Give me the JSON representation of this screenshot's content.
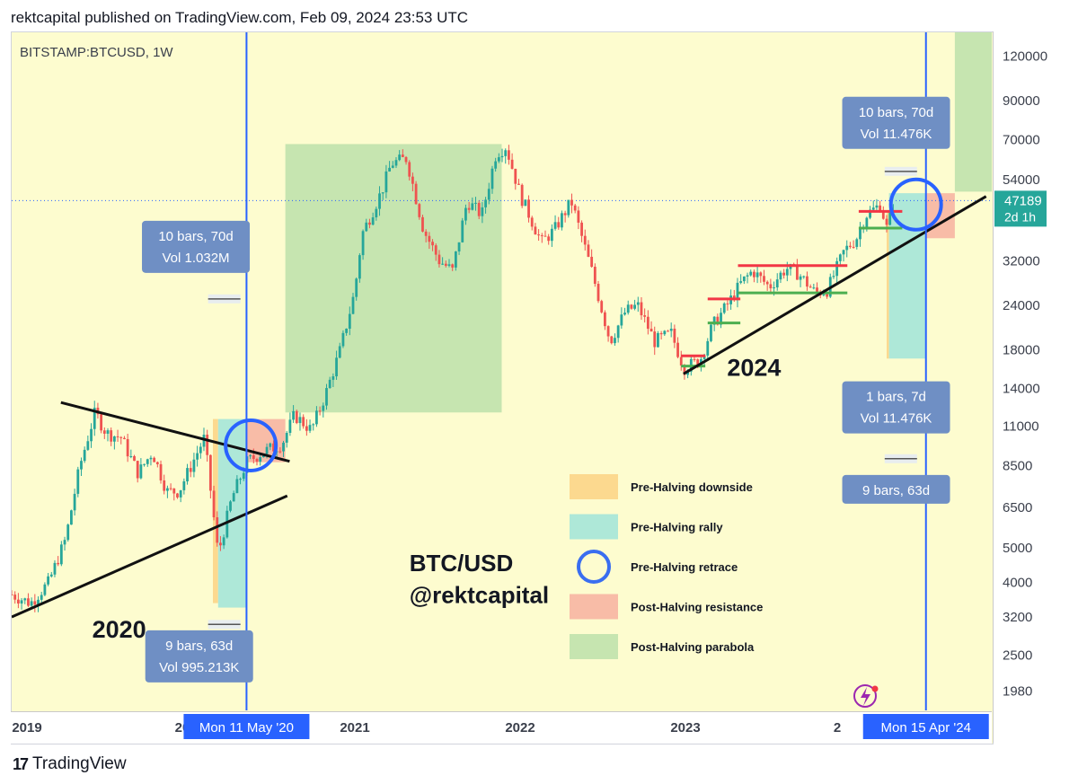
{
  "header": {
    "text": "rektcapital published on TradingView.com, Feb 09, 2024 23:53 UTC"
  },
  "footer": {
    "brand": "TradingView",
    "icon": "tradingview-logo-icon"
  },
  "chart_data": {
    "type": "candlestick",
    "symbol_label": "BITSTAMP:BTCUSD, 1W",
    "y_scale": "log",
    "ylim": [
      1750,
      140000
    ],
    "y_ticks": [
      120000,
      90000,
      70000,
      54000,
      32000,
      24000,
      18000,
      14000,
      11000,
      8500,
      6500,
      5000,
      4000,
      3200,
      2500,
      1980
    ],
    "x_range": [
      "2019-01-01",
      "2024-09-01"
    ],
    "x_tick_labels": [
      "2019",
      "20",
      "2021",
      "2022",
      "2023",
      "2"
    ],
    "current_price": {
      "label": "47189",
      "countdown": "2d 1h",
      "value": 47189
    },
    "close_series": [
      {
        "date": "2019-01-01",
        "value": 3700
      },
      {
        "date": "2019-02-10",
        "value": 3500
      },
      {
        "date": "2019-03-20",
        "value": 4000
      },
      {
        "date": "2019-04-25",
        "value": 5300
      },
      {
        "date": "2019-05-25",
        "value": 8500
      },
      {
        "date": "2019-06-26",
        "value": 12000
      },
      {
        "date": "2019-07-20",
        "value": 10500
      },
      {
        "date": "2019-08-20",
        "value": 10200
      },
      {
        "date": "2019-09-25",
        "value": 8100
      },
      {
        "date": "2019-10-25",
        "value": 9300
      },
      {
        "date": "2019-11-25",
        "value": 7200
      },
      {
        "date": "2019-12-20",
        "value": 7200
      },
      {
        "date": "2020-02-12",
        "value": 10200
      },
      {
        "date": "2020-03-12",
        "value": 4800
      },
      {
        "date": "2020-04-10",
        "value": 6900
      },
      {
        "date": "2020-05-11",
        "value": 8700
      },
      {
        "date": "2020-06-15",
        "value": 9300
      },
      {
        "date": "2020-07-25",
        "value": 9800
      },
      {
        "date": "2020-08-20",
        "value": 11800
      },
      {
        "date": "2020-09-25",
        "value": 10700
      },
      {
        "date": "2020-10-25",
        "value": 13500
      },
      {
        "date": "2020-11-25",
        "value": 18000
      },
      {
        "date": "2020-12-25",
        "value": 26000
      },
      {
        "date": "2021-01-10",
        "value": 38000
      },
      {
        "date": "2021-02-20",
        "value": 50000
      },
      {
        "date": "2021-03-13",
        "value": 60000
      },
      {
        "date": "2021-04-14",
        "value": 62000
      },
      {
        "date": "2021-05-20",
        "value": 39000
      },
      {
        "date": "2021-06-22",
        "value": 32000
      },
      {
        "date": "2021-07-20",
        "value": 30000
      },
      {
        "date": "2021-08-20",
        "value": 47000
      },
      {
        "date": "2021-09-20",
        "value": 43000
      },
      {
        "date": "2021-10-20",
        "value": 64000
      },
      {
        "date": "2021-11-10",
        "value": 67000
      },
      {
        "date": "2021-12-10",
        "value": 49000
      },
      {
        "date": "2022-01-24",
        "value": 36000
      },
      {
        "date": "2022-02-20",
        "value": 39000
      },
      {
        "date": "2022-03-28",
        "value": 47000
      },
      {
        "date": "2022-05-10",
        "value": 30000
      },
      {
        "date": "2022-06-18",
        "value": 19000
      },
      {
        "date": "2022-07-20",
        "value": 23000
      },
      {
        "date": "2022-08-15",
        "value": 24000
      },
      {
        "date": "2022-09-20",
        "value": 19000
      },
      {
        "date": "2022-10-25",
        "value": 20000
      },
      {
        "date": "2022-11-21",
        "value": 16000
      },
      {
        "date": "2022-12-25",
        "value": 16800
      },
      {
        "date": "2023-01-20",
        "value": 21000
      },
      {
        "date": "2023-02-20",
        "value": 24000
      },
      {
        "date": "2023-03-20",
        "value": 27500
      },
      {
        "date": "2023-04-15",
        "value": 30000
      },
      {
        "date": "2023-05-20",
        "value": 27000
      },
      {
        "date": "2023-06-25",
        "value": 30500
      },
      {
        "date": "2023-07-20",
        "value": 29500
      },
      {
        "date": "2023-08-25",
        "value": 26000
      },
      {
        "date": "2023-09-20",
        "value": 26500
      },
      {
        "date": "2023-10-25",
        "value": 34000
      },
      {
        "date": "2023-11-20",
        "value": 37000
      },
      {
        "date": "2023-12-10",
        "value": 43000
      },
      {
        "date": "2024-01-10",
        "value": 46000
      },
      {
        "date": "2024-01-23",
        "value": 39500
      },
      {
        "date": "2024-02-09",
        "value": 47189
      }
    ],
    "halving_markers": [
      {
        "date": "2020-05-11",
        "label": "Mon 11 May '20"
      },
      {
        "date": "2024-04-15",
        "label": "Mon 15 Apr '24"
      }
    ],
    "measure_boxes": [
      {
        "line1": "10 bars, 70d",
        "line2": "Vol 1.032M",
        "date": "2020-01-25",
        "price": 35000
      },
      {
        "line1": "9 bars, 63d",
        "line2": "Vol 995.213K",
        "date": "2020-02-01",
        "price": 2480
      },
      {
        "line1": "10 bars, 70d",
        "line2": "Vol 11.476K",
        "date": "2024-02-12",
        "price": 78000
      },
      {
        "line1": "1 bars, 7d",
        "line2": "Vol 11.476K",
        "date": "2024-02-12",
        "price": 12400
      },
      {
        "line1": "9 bars, 63d",
        "line2": "",
        "date": "2024-02-12",
        "price": 7300
      }
    ],
    "zones": [
      {
        "kind": "pre-halving-downside",
        "x0": "2020-03-01",
        "x1": "2020-03-12",
        "y0": 3500,
        "y1": 11500
      },
      {
        "kind": "pre-halving-rally",
        "x0": "2020-03-12",
        "x1": "2020-05-11",
        "y0": 3400,
        "y1": 11500
      },
      {
        "kind": "post-halving-resistance",
        "x0": "2020-05-11",
        "x1": "2020-08-01",
        "y0": 8700,
        "y1": 11500
      },
      {
        "kind": "post-halving-parabola",
        "x0": "2020-08-01",
        "x1": "2021-11-01",
        "y0": 12000,
        "y1": 68000
      },
      {
        "kind": "pre-halving-downside",
        "x0": "2024-01-23",
        "x1": "2024-01-28",
        "y0": 17000,
        "y1": 44000
      },
      {
        "kind": "pre-halving-rally",
        "x0": "2024-01-28",
        "x1": "2024-04-15",
        "y0": 17000,
        "y1": 49500
      },
      {
        "kind": "post-halving-resistance",
        "x0": "2024-04-15",
        "x1": "2024-06-15",
        "y0": 37000,
        "y1": 49500
      },
      {
        "kind": "post-halving-parabola",
        "x0": "2024-06-15",
        "x1": "2024-09-10",
        "y0": 50000,
        "y1": 140000
      }
    ],
    "trend_lines": [
      {
        "x0": "2019-01-01",
        "y0": 3200,
        "x1": "2020-08-05",
        "y1": 7000
      },
      {
        "x0": "2019-04-15",
        "y0": 12800,
        "x1": "2020-08-10",
        "y1": 8750
      },
      {
        "x0": "2022-11-20",
        "y0": 15400,
        "x1": "2024-08-20",
        "y1": 48500
      }
    ],
    "annotations": [
      {
        "text": "2020",
        "date": "2019-06-20",
        "price": 2800,
        "size": 27
      },
      {
        "text": "2024",
        "date": "2023-02-20",
        "price": 15200,
        "size": 27
      },
      {
        "text": "BTC/USD",
        "date": "2021-04-20",
        "price": 4300,
        "size": 26
      },
      {
        "text": "@rektcapital",
        "date": "2021-04-20",
        "price": 3500,
        "size": 26
      }
    ],
    "legend": [
      {
        "label": "Pre-Halving downside",
        "color": "#fcd98f"
      },
      {
        "label": "Pre-Halving rally",
        "color": "#aee8d8"
      },
      {
        "label": "Pre-Halving retrace",
        "color": "#3a6ef0"
      },
      {
        "label": "Post-Halving resistance",
        "color": "#f8bca7"
      },
      {
        "label": "Post-Halving parabola",
        "color": "#c6e5b0"
      }
    ],
    "colors": {
      "up": "#26a69a",
      "down": "#ef5350",
      "halving_line": "#2962ff",
      "label_box": "#6f8fc4",
      "resistance_line": "#f23645",
      "support_line": "#4caf50"
    }
  }
}
